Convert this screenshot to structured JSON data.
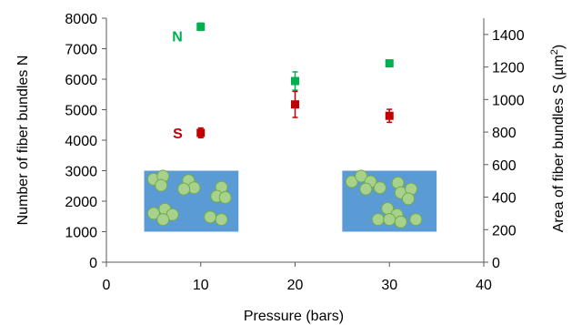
{
  "chart_data": {
    "type": "scatter",
    "xlabel": "Pressure (bars)",
    "ylabel_left": "Number of fiber bundles N",
    "ylabel_right_prefix": "Area of fiber bundles S  (µm",
    "ylabel_right_sup": "2",
    "ylabel_right_suffix": ")",
    "xlim": [
      0,
      40
    ],
    "xticks": [
      0,
      10,
      20,
      30,
      40
    ],
    "ylim_left": [
      0,
      8000
    ],
    "yticks_left": [
      0,
      1000,
      2000,
      3000,
      4000,
      5000,
      6000,
      7000,
      8000
    ],
    "ylim_right": [
      0,
      1500
    ],
    "yticks_right": [
      0,
      200,
      400,
      600,
      800,
      1000,
      1200,
      1400
    ],
    "grid": false,
    "series": [
      {
        "name": "N",
        "axis": "left",
        "color": "#00b050",
        "points": [
          {
            "x": 10,
            "y": 7720,
            "err": 120
          },
          {
            "x": 20,
            "y": 5940,
            "err": 300
          },
          {
            "x": 30,
            "y": 6520,
            "err": 100
          }
        ]
      },
      {
        "name": "S",
        "axis": "right",
        "color": "#c00000",
        "points": [
          {
            "x": 10,
            "y": 795,
            "err": 30
          },
          {
            "x": 20,
            "y": 970,
            "err": 80
          },
          {
            "x": 30,
            "y": 900,
            "err": 40
          }
        ]
      }
    ],
    "insets": [
      {
        "x_range": [
          4,
          14
        ],
        "y_range": [
          1000,
          3000
        ],
        "fill": "#5b9bd5"
      },
      {
        "x_range": [
          25,
          35
        ],
        "y_range": [
          1000,
          3000
        ],
        "fill": "#5b9bd5"
      }
    ]
  }
}
